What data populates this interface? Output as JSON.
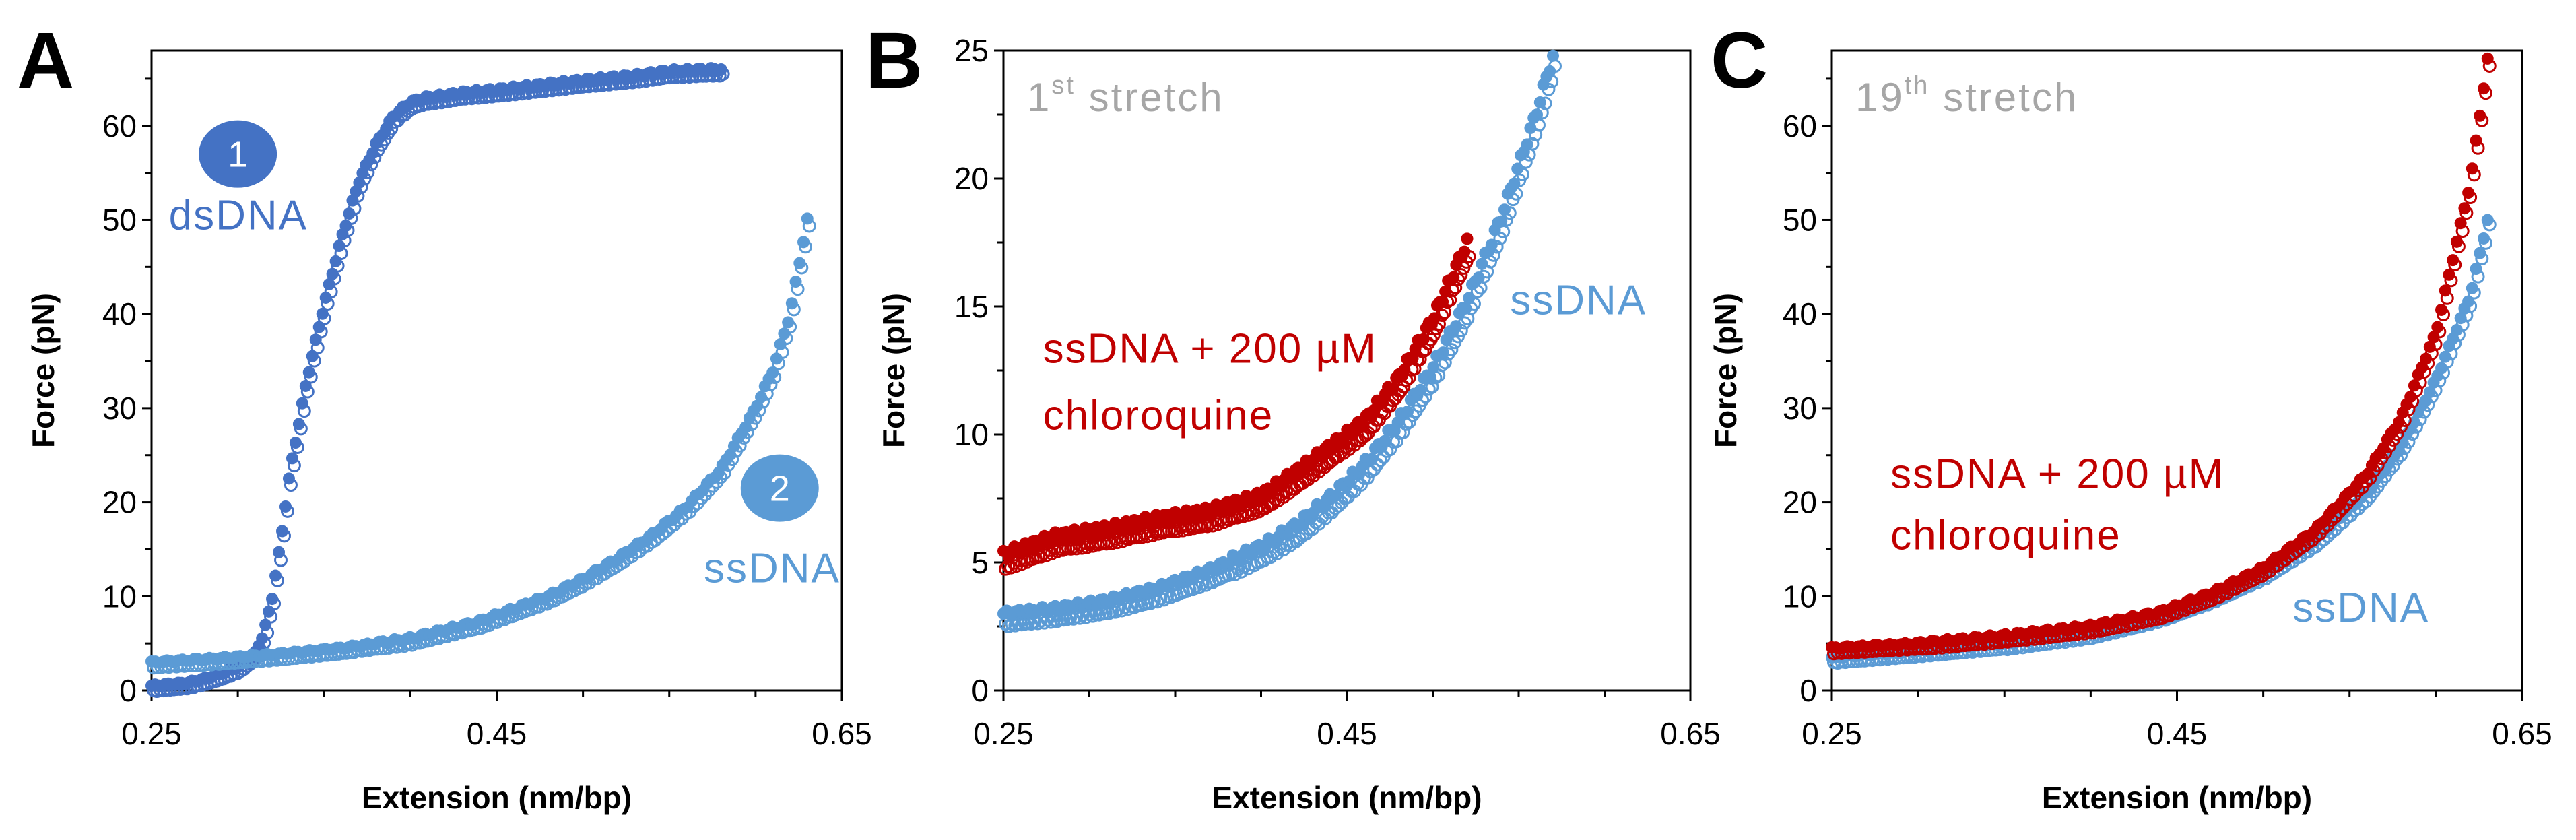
{
  "colors": {
    "dsDNA": "#4472C4",
    "ssDNA": "#5B9BD5",
    "chloroquine": "#C00000",
    "stretch_label": "#A6A6A6",
    "circle_text": "#FFFFFF"
  },
  "chart_data": [
    {
      "type": "scatter",
      "panel": "A",
      "xlabel": "Extension (nm/bp)",
      "ylabel": "Force (pN)",
      "xlim": [
        0.25,
        0.65
      ],
      "ylim": [
        0,
        68
      ],
      "xticks": [
        0.25,
        0.45,
        0.65
      ],
      "xtick_labels": [
        "0.25",
        "0.45",
        "0.65"
      ],
      "yticks": [
        0,
        10,
        20,
        30,
        40,
        50,
        60
      ],
      "ytick_labels": [
        "0",
        "10",
        "20",
        "30",
        "40",
        "50",
        "60"
      ],
      "annotations": [
        {
          "id": "circle-1",
          "kind": "circle",
          "text": "1",
          "series": "dsDNA",
          "anchor": [
            0.3,
            57
          ]
        },
        {
          "id": "label-dsdna",
          "kind": "text",
          "text": "dsDNA",
          "series": "dsDNA",
          "anchor": [
            0.26,
            49
          ]
        },
        {
          "id": "circle-2",
          "kind": "circle",
          "text": "2",
          "series": "ssDNA",
          "anchor": [
            0.614,
            21.5
          ]
        },
        {
          "id": "label-ssdna",
          "kind": "text",
          "text": "ssDNA",
          "series": "ssDNA",
          "anchor": [
            0.57,
            11.5
          ]
        }
      ],
      "series": [
        {
          "name": "dsDNA",
          "color_key": "dsDNA",
          "x": [
            0.25,
            0.27,
            0.28,
            0.29,
            0.3,
            0.31,
            0.315,
            0.32,
            0.325,
            0.33,
            0.34,
            0.35,
            0.36,
            0.37,
            0.38,
            0.39,
            0.4,
            0.41,
            0.42,
            0.43,
            0.45,
            0.47,
            0.5,
            0.53,
            0.55,
            0.58
          ],
          "y": [
            0.5,
            0.8,
            1.2,
            1.8,
            2.5,
            4,
            6,
            10,
            16,
            23,
            33,
            41,
            48,
            54,
            58,
            61,
            62.5,
            63,
            63.2,
            63.5,
            63.8,
            64.2,
            64.8,
            65.3,
            65.8,
            66
          ]
        },
        {
          "name": "ssDNA",
          "color_key": "ssDNA",
          "x": [
            0.25,
            0.28,
            0.32,
            0.36,
            0.4,
            0.44,
            0.48,
            0.5,
            0.52,
            0.54,
            0.56,
            0.58,
            0.6,
            0.61,
            0.62,
            0.63
          ],
          "y": [
            3,
            3.3,
            3.8,
            4.5,
            5.5,
            7.3,
            10,
            11.8,
            14,
            16.5,
            19.5,
            23.5,
            30,
            34,
            40,
            50
          ]
        }
      ]
    },
    {
      "type": "scatter",
      "panel": "B",
      "stretch_label": {
        "base": "1",
        "sup": "st",
        "rest": " stretch"
      },
      "xlabel": "Extension (nm/bp)",
      "ylabel": "Force (pN)",
      "xlim": [
        0.25,
        0.65
      ],
      "ylim": [
        0,
        25
      ],
      "xticks": [
        0.25,
        0.45,
        0.65
      ],
      "xtick_labels": [
        "0.25",
        "0.45",
        "0.65"
      ],
      "yticks": [
        0,
        5,
        10,
        15,
        20,
        25
      ],
      "ytick_labels": [
        "0",
        "5",
        "10",
        "15",
        "20",
        "25"
      ],
      "annotations": [
        {
          "id": "label-chloroquine-1",
          "kind": "text",
          "text": "ssDNA + 200 µM",
          "series": "ssDNA + 200 µM chloroquine",
          "anchor": [
            0.273,
            12.8
          ]
        },
        {
          "id": "label-chloroquine-2",
          "kind": "text",
          "text": "chloroquine",
          "series": "ssDNA + 200 µM chloroquine",
          "anchor": [
            0.273,
            10.2
          ]
        },
        {
          "id": "label-ssdna",
          "kind": "text",
          "text": "ssDNA",
          "series": "ssDNA",
          "anchor": [
            0.545,
            14.7
          ]
        }
      ],
      "series": [
        {
          "name": "ssDNA",
          "color_key": "ssDNA",
          "x": [
            0.25,
            0.28,
            0.31,
            0.34,
            0.37,
            0.4,
            0.42,
            0.44,
            0.46,
            0.48,
            0.5,
            0.52,
            0.54,
            0.55,
            0.56,
            0.57
          ],
          "y": [
            3,
            3.2,
            3.5,
            4,
            4.7,
            5.6,
            6.4,
            7.5,
            8.8,
            10.5,
            12.6,
            15.2,
            18.5,
            20.5,
            22.5,
            24.8
          ]
        },
        {
          "name": "ssDNA + 200 µM chloroquine",
          "color_key": "chloroquine",
          "x": [
            0.25,
            0.28,
            0.31,
            0.34,
            0.37,
            0.4,
            0.42,
            0.44,
            0.46,
            0.48,
            0.5,
            0.52
          ],
          "y": [
            5.3,
            6,
            6.3,
            6.7,
            7,
            7.6,
            8.5,
            9.5,
            10.5,
            12.2,
            14.5,
            17.5
          ]
        }
      ]
    },
    {
      "type": "scatter",
      "panel": "C",
      "stretch_label": {
        "base": "19",
        "sup": "th",
        "rest": " stretch"
      },
      "xlabel": "Extension (nm/bp)",
      "ylabel": "Force (pN)",
      "xlim": [
        0.25,
        0.65
      ],
      "ylim": [
        0,
        68
      ],
      "xticks": [
        0.25,
        0.45,
        0.65
      ],
      "xtick_labels": [
        "0.25",
        "0.45",
        "0.65"
      ],
      "yticks": [
        0,
        10,
        20,
        30,
        40,
        50,
        60
      ],
      "ytick_labels": [
        "0",
        "10",
        "20",
        "30",
        "40",
        "50",
        "60"
      ],
      "annotations": [
        {
          "id": "label-chloroquine-1",
          "kind": "text",
          "text": "ssDNA + 200 µM",
          "series": "ssDNA + 200 µM chloroquine",
          "anchor": [
            0.284,
            21.5
          ]
        },
        {
          "id": "label-chloroquine-2",
          "kind": "text",
          "text": "chloroquine",
          "series": "ssDNA + 200 µM chloroquine",
          "anchor": [
            0.284,
            15
          ]
        },
        {
          "id": "label-ssdna",
          "kind": "text",
          "text": "ssDNA",
          "series": "ssDNA",
          "anchor": [
            0.517,
            7.3
          ]
        }
      ],
      "series": [
        {
          "name": "ssDNA",
          "color_key": "ssDNA",
          "x": [
            0.25,
            0.3,
            0.35,
            0.4,
            0.44,
            0.47,
            0.5,
            0.53,
            0.56,
            0.58,
            0.6,
            0.62,
            0.63
          ],
          "y": [
            3.5,
            4.2,
            5,
            6.2,
            8,
            10,
            12.5,
            16,
            21,
            26,
            33,
            42,
            50
          ]
        },
        {
          "name": "ssDNA + 200 µM chloroquine",
          "color_key": "chloroquine",
          "x": [
            0.25,
            0.3,
            0.35,
            0.4,
            0.44,
            0.47,
            0.5,
            0.53,
            0.56,
            0.58,
            0.6,
            0.62,
            0.63
          ],
          "y": [
            4.5,
            5,
            5.8,
            6.8,
            8.3,
            10.3,
            13,
            17,
            23,
            29,
            38,
            54,
            67
          ]
        }
      ]
    }
  ]
}
